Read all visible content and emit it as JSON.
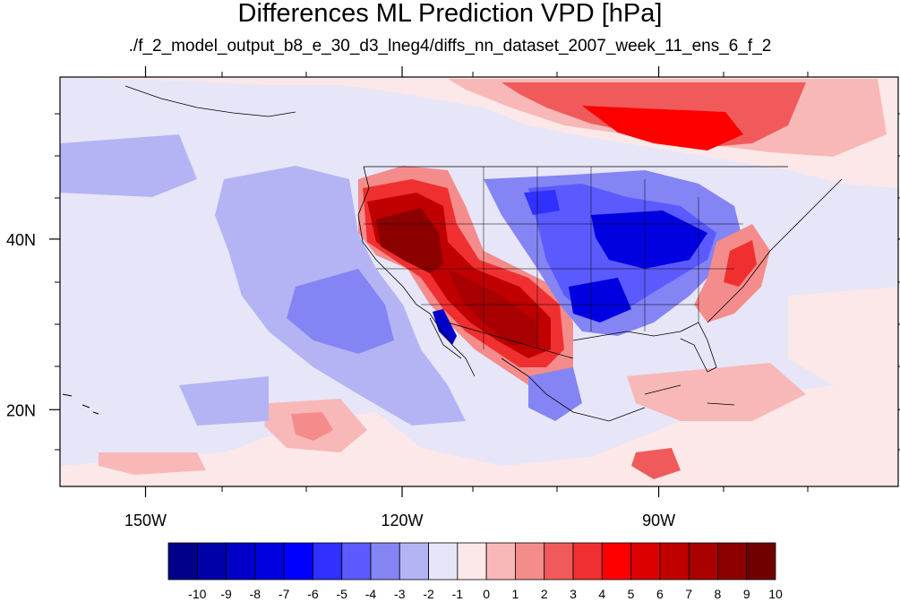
{
  "title": "Differences ML Prediction VPD [hPa]",
  "subtitle": "./f_2_model_output_b8_e_30_d3_lneg4/diffs_nn_dataset_2007_week_11_ens_6_f_2",
  "map": {
    "lon_range": [
      -160,
      -62
    ],
    "lat_range": [
      11,
      59
    ],
    "lon_ticks": [
      {
        "value": -150,
        "label": "150W"
      },
      {
        "value": -120,
        "label": "120W"
      },
      {
        "value": -90,
        "label": "90W"
      }
    ],
    "lat_ticks": [
      {
        "value": 40,
        "label": "40N"
      },
      {
        "value": 20,
        "label": "20N"
      }
    ],
    "background_color": "#e6e6f8"
  },
  "colorbar": {
    "labels": [
      "-10",
      "-9",
      "-8",
      "-7",
      "-6",
      "-5",
      "-4",
      "-3",
      "-2",
      "-1",
      "0",
      "1",
      "2",
      "3",
      "4",
      "5",
      "6",
      "7",
      "8",
      "9",
      "10"
    ],
    "colors": [
      "#00008a",
      "#0000a8",
      "#0000c8",
      "#0000e0",
      "#0000ff",
      "#3030ff",
      "#5a5aff",
      "#8484f4",
      "#b4b4f4",
      "#e6e6f8",
      "#fce8e8",
      "#f8b8b8",
      "#f48c8c",
      "#f05a5a",
      "#f03030",
      "#fc0000",
      "#dc0000",
      "#c00000",
      "#a80000",
      "#8c0000",
      "#700000"
    ]
  }
}
